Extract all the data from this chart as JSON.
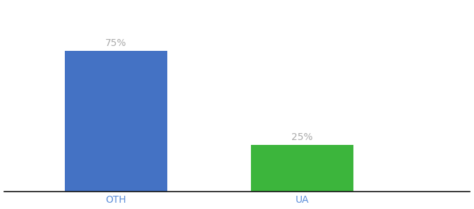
{
  "categories": [
    "OTH",
    "UA"
  ],
  "values": [
    75,
    25
  ],
  "bar_colors": [
    "#4472c4",
    "#3cb53c"
  ],
  "label_texts": [
    "75%",
    "25%"
  ],
  "label_color": "#aaaaaa",
  "ylim": [
    0,
    100
  ],
  "background_color": "#ffffff",
  "bar_width": 0.55,
  "label_fontsize": 10,
  "tick_fontsize": 10,
  "tick_color": "#5b8dd9"
}
